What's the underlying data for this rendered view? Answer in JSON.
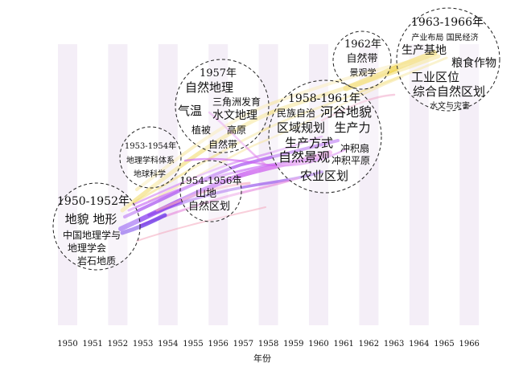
{
  "timeline": {
    "axis_title": "年份",
    "years": [
      "1950",
      "1951",
      "1952",
      "1953",
      "1954",
      "1955",
      "1956",
      "1957",
      "1958",
      "1959",
      "1960",
      "1961",
      "1962",
      "1963",
      "1964",
      "1965",
      "1966"
    ]
  },
  "clusters": [
    {
      "id": "c1950",
      "period": "1950-1952年",
      "terms": [
        "地貌 地形",
        "中国地理学与",
        "地理学会",
        "岩石地质"
      ]
    },
    {
      "id": "c1953",
      "period": "1953-1954年",
      "terms": [
        "地理学科体系",
        "地球科学"
      ]
    },
    {
      "id": "c1954",
      "period": "1954-1956年",
      "terms": [
        "山地",
        "自然区划"
      ]
    },
    {
      "id": "c1957",
      "period": "1957年",
      "terms": [
        "自然地理",
        "三角洲发育",
        "气温",
        "水文地理",
        "植被",
        "高原",
        "自然带"
      ]
    },
    {
      "id": "c1958",
      "period": "1958-1961年",
      "terms": [
        "民族自治",
        "河谷地貌",
        "区域规划",
        "生产力",
        "生产方式",
        "冲积扇",
        "自然景观",
        "冲积平原",
        "农业区划"
      ]
    },
    {
      "id": "c1962",
      "period": "1962年",
      "terms": [
        "自然带",
        "景观学"
      ]
    },
    {
      "id": "c1963",
      "period": "1963-1966年",
      "terms": [
        "产业布局 国民经济",
        "生产基地",
        "粮食作物",
        "工业区位",
        "综合自然区划",
        "水文与灾害"
      ]
    }
  ],
  "colors": {
    "band": "#f4eef7",
    "flow_purple": "#9b30e6",
    "flow_magenta": "#e070ee",
    "flow_pink": "#f4a0b8",
    "flow_yellow": "#f2df7a",
    "circle_stroke": "#222222"
  }
}
